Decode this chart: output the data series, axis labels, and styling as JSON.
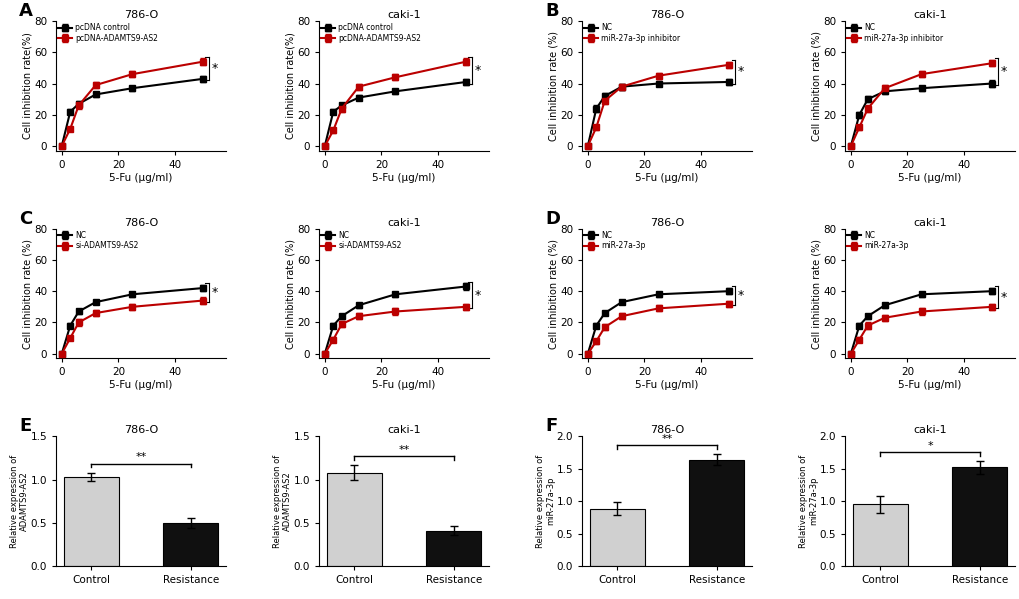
{
  "x_vals": [
    0,
    3,
    6,
    12,
    25,
    50
  ],
  "panel_A": {
    "title_left": "786-O",
    "title_right": "caki-1",
    "black_786O": [
      0,
      22,
      27,
      33,
      37,
      43
    ],
    "black_786O_err": [
      0,
      1.5,
      1.5,
      1.5,
      1.5,
      2
    ],
    "red_786O": [
      0,
      11,
      26,
      39,
      46,
      54
    ],
    "red_786O_err": [
      0,
      1.5,
      2,
      2,
      2,
      2
    ],
    "black_caki1": [
      0,
      22,
      26,
      31,
      35,
      41
    ],
    "black_caki1_err": [
      0,
      1.5,
      1.5,
      1.5,
      1.5,
      2
    ],
    "red_caki1": [
      0,
      10,
      24,
      38,
      44,
      54
    ],
    "red_caki1_err": [
      0,
      1.5,
      2,
      2,
      2,
      2
    ],
    "black_label": "pcDNA control",
    "red_label": "pcDNA-ADAMTS9-AS2",
    "ylabel": "Cell inhibition rate(%)",
    "xlabel": "5-Fu (μg/ml)"
  },
  "panel_B": {
    "title_left": "786-O",
    "title_right": "caki-1",
    "black_786O": [
      0,
      24,
      32,
      38,
      40,
      41
    ],
    "black_786O_err": [
      0,
      2,
      2,
      2,
      1.5,
      2
    ],
    "red_786O": [
      0,
      12,
      29,
      38,
      45,
      52
    ],
    "red_786O_err": [
      0,
      1.5,
      2,
      2,
      2,
      2
    ],
    "black_caki1": [
      0,
      20,
      30,
      35,
      37,
      40
    ],
    "black_caki1_err": [
      0,
      2,
      2,
      2,
      1.5,
      2
    ],
    "red_caki1": [
      0,
      12,
      24,
      37,
      46,
      53
    ],
    "red_caki1_err": [
      0,
      1.5,
      2,
      2,
      2,
      2
    ],
    "black_label": "NC",
    "red_label": "miR-27a-3p inhibitor",
    "ylabel": "Cell inhibition rate (%)",
    "xlabel": "5-Fu (μg/ml)"
  },
  "panel_C": {
    "title_left": "786-O",
    "title_right": "caki-1",
    "black_786O": [
      0,
      18,
      27,
      33,
      38,
      42
    ],
    "black_786O_err": [
      0,
      1.5,
      1.5,
      1.5,
      1.5,
      2
    ],
    "red_786O": [
      0,
      10,
      20,
      26,
      30,
      34
    ],
    "red_786O_err": [
      0,
      1.5,
      2,
      2,
      2,
      2
    ],
    "black_caki1": [
      0,
      18,
      24,
      31,
      38,
      43
    ],
    "black_caki1_err": [
      0,
      1.5,
      1.5,
      1.5,
      1.5,
      2
    ],
    "red_caki1": [
      0,
      9,
      19,
      24,
      27,
      30
    ],
    "red_caki1_err": [
      0,
      1.5,
      2,
      2,
      2,
      2
    ],
    "black_label": "NC",
    "red_label": "si-ADAMTS9-AS2",
    "ylabel": "Cell inhibition rate (%)",
    "xlabel": "5-Fu (μg/ml)"
  },
  "panel_D": {
    "title_left": "786-O",
    "title_right": "caki-1",
    "black_786O": [
      0,
      18,
      26,
      33,
      38,
      40
    ],
    "black_786O_err": [
      0,
      1.5,
      1.5,
      1.5,
      1.5,
      2
    ],
    "red_786O": [
      0,
      8,
      17,
      24,
      29,
      32
    ],
    "red_786O_err": [
      0,
      1.5,
      2,
      2,
      2,
      2
    ],
    "black_caki1": [
      0,
      18,
      24,
      31,
      38,
      40
    ],
    "black_caki1_err": [
      0,
      1.5,
      1.5,
      1.5,
      1.5,
      2
    ],
    "red_caki1": [
      0,
      9,
      18,
      23,
      27,
      30
    ],
    "red_caki1_err": [
      0,
      1.5,
      2,
      2,
      2,
      2
    ],
    "black_label": "NC",
    "red_label": "miR-27a-3p",
    "ylabel": "Cell inhibition rate (%)",
    "xlabel": "5-Fu (μg/ml)"
  },
  "panel_E": {
    "title_left": "786-O",
    "title_right": "caki-1",
    "ylabel": "Relative expression of\nADAMTS9-AS2",
    "categories": [
      "Control",
      "Resistance"
    ],
    "bars_786O": [
      1.03,
      0.5
    ],
    "err_786O": [
      0.05,
      0.06
    ],
    "bars_caki1": [
      1.08,
      0.41
    ],
    "err_caki1": [
      0.09,
      0.05
    ],
    "bar_color_control": "#d0d0d0",
    "bar_color_resistance": "#101010",
    "sig_symbol": "**",
    "ylim": 1.5,
    "yticks": [
      0.0,
      0.5,
      1.0,
      1.5
    ]
  },
  "panel_F": {
    "title_left": "786-O",
    "title_right": "caki-1",
    "ylabel": "Relative expression of\nmiR-27a-3p",
    "categories": [
      "Control",
      "Resistance"
    ],
    "bars_786O": [
      0.88,
      1.64
    ],
    "err_786O": [
      0.1,
      0.08
    ],
    "bars_caki1": [
      0.95,
      1.52
    ],
    "err_caki1": [
      0.13,
      0.1
    ],
    "bar_color_control": "#d0d0d0",
    "bar_color_resistance": "#101010",
    "sig_symbol_786O": "**",
    "sig_symbol_caki1": "*",
    "ylim": 2.0,
    "yticks": [
      0.0,
      0.5,
      1.0,
      1.5,
      2.0
    ]
  },
  "line_black": "#000000",
  "line_red": "#bb0000",
  "marker_size": 5,
  "line_width": 1.5
}
